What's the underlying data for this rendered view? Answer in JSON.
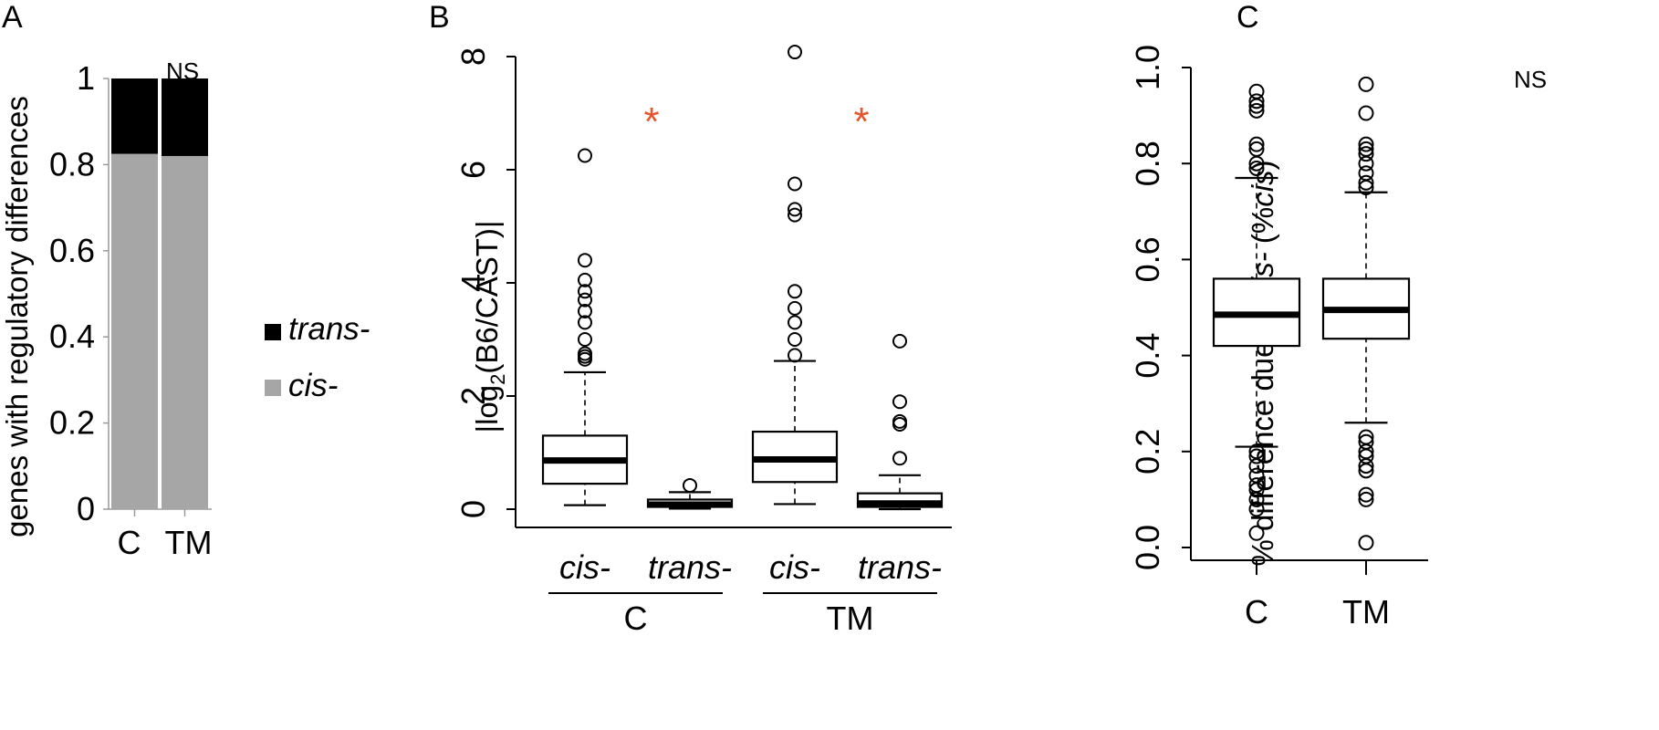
{
  "panel_labels": {
    "a": "A",
    "b": "B",
    "c": "C"
  },
  "chart_data": [
    {
      "type": "bar",
      "stacked": true,
      "categories": [
        "C",
        "TM"
      ],
      "series": [
        {
          "name": "cis-",
          "values": [
            0.825,
            0.82
          ],
          "color": "#a6a6a6"
        },
        {
          "name": "trans-",
          "values": [
            0.175,
            0.18
          ],
          "color": "#000000"
        }
      ],
      "title": "",
      "ylabel": "genes with regulatory differences",
      "ylim": [
        0,
        1
      ],
      "yticks": [
        "0",
        "0.2",
        "0.4",
        "0.6",
        "0.8",
        "1"
      ],
      "legend_placement": "right",
      "annotation": "NS"
    },
    {
      "type": "box",
      "ylabel_prefix": "|log",
      "ylabel_sub": "2",
      "ylabel_suffix": "(B6/CAST)|",
      "ylim": [
        0,
        8
      ],
      "yticks": [
        "0",
        "2",
        "4",
        "6",
        "8"
      ],
      "group_labels": [
        "C",
        "TM"
      ],
      "significance_marker": "*",
      "significance_color": "#e8552d",
      "boxes": [
        {
          "label": "cis-",
          "group": "C",
          "whisker_low": 0.07,
          "q1": 0.45,
          "median": 0.86,
          "q3": 1.3,
          "whisker_high": 2.42,
          "outliers": [
            2.65,
            2.7,
            2.75,
            3.0,
            3.3,
            3.5,
            3.7,
            3.85,
            4.05,
            4.4,
            6.25
          ],
          "significant": false
        },
        {
          "label": "trans-",
          "group": "C",
          "whisker_low": 0.01,
          "q1": 0.04,
          "median": 0.08,
          "q3": 0.17,
          "whisker_high": 0.3,
          "outliers": [
            0.42
          ],
          "significant": true
        },
        {
          "label": "cis-",
          "group": "TM",
          "whisker_low": 0.09,
          "q1": 0.48,
          "median": 0.88,
          "q3": 1.37,
          "whisker_high": 2.62,
          "outliers": [
            2.72,
            3.0,
            3.3,
            3.55,
            3.85,
            5.2,
            5.3,
            5.75,
            8.08
          ],
          "significant": false
        },
        {
          "label": "trans-",
          "group": "TM",
          "whisker_low": 0.0,
          "q1": 0.04,
          "median": 0.1,
          "q3": 0.28,
          "whisker_high": 0.6,
          "outliers": [
            0.9,
            1.5,
            1.55,
            1.9,
            2.97
          ],
          "significant": true
        }
      ]
    },
    {
      "type": "box",
      "ylabel_prefix": "% difference due to ",
      "ylabel_italic": "cis-",
      "ylabel_suffix": " (%",
      "ylabel_italic2": "cis",
      "ylabel_close": ")",
      "ylim": [
        0,
        1
      ],
      "yticks": [
        "0.0",
        "0.2",
        "0.4",
        "0.6",
        "0.8",
        "1.0"
      ],
      "annotation": "NS",
      "boxes": [
        {
          "label": "C",
          "whisker_low": 0.21,
          "q1": 0.42,
          "median": 0.485,
          "q3": 0.56,
          "whisker_high": 0.77,
          "outliers": [
            0.03,
            0.08,
            0.1,
            0.12,
            0.13,
            0.15,
            0.17,
            0.19,
            0.2,
            0.79,
            0.8,
            0.83,
            0.84,
            0.91,
            0.92,
            0.93,
            0.95
          ]
        },
        {
          "label": "TM",
          "whisker_low": 0.26,
          "q1": 0.435,
          "median": 0.495,
          "q3": 0.56,
          "whisker_high": 0.74,
          "outliers": [
            0.01,
            0.1,
            0.11,
            0.16,
            0.17,
            0.19,
            0.2,
            0.22,
            0.23,
            0.75,
            0.76,
            0.78,
            0.8,
            0.82,
            0.83,
            0.84,
            0.905,
            0.965
          ]
        }
      ]
    }
  ]
}
